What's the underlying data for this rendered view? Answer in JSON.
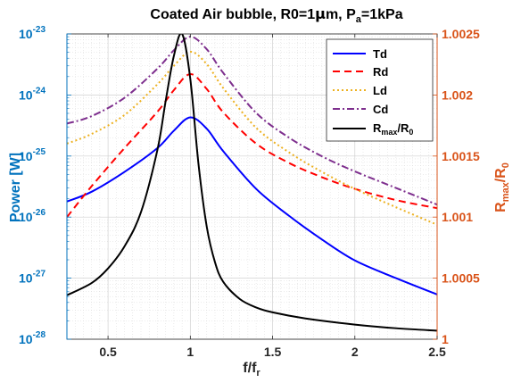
{
  "chart_data": {
    "type": "line",
    "title": {
      "prefix": "Coated Air bubble, R0=1",
      "mu": "μ",
      "mid": "m, P",
      "sub": "a",
      "suffix": "=1kPa"
    },
    "xlabel": {
      "main": "f/f",
      "sub": "r"
    },
    "ylabel_left": "Power [W]",
    "ylabel_right": {
      "main": "R",
      "sub1": "max",
      "mid": "/R",
      "sub2": "0"
    },
    "xlim": [
      0.25,
      2.5
    ],
    "ylim_left": [
      1e-28,
      1e-23
    ],
    "ylim_right": [
      1.0,
      1.0025
    ],
    "left_scale": "log",
    "grid": true,
    "legend_position": "top-right",
    "x_ticks": [
      "0.5",
      "1",
      "1.5",
      "2",
      "2.5"
    ],
    "x_tick_values": [
      0.5,
      1,
      1.5,
      2,
      2.5
    ],
    "left_ticks": [
      {
        "base": "10",
        "exp": "-28"
      },
      {
        "base": "10",
        "exp": "-27"
      },
      {
        "base": "10",
        "exp": "-26"
      },
      {
        "base": "10",
        "exp": "-25"
      },
      {
        "base": "10",
        "exp": "-24"
      },
      {
        "base": "10",
        "exp": "-23"
      }
    ],
    "right_ticks": [
      "1",
      "1.0005",
      "1.001",
      "1.0015",
      "1.002",
      "1.0025"
    ],
    "right_tick_values": [
      1.0,
      1.0005,
      1.001,
      1.0015,
      1.002,
      1.0025
    ],
    "left_axis_color": "#0072bd",
    "right_axis_color": "#d95319",
    "series": [
      {
        "name": "Td",
        "color": "#0000ff",
        "dash": "solid",
        "axis": "left",
        "x": [
          0.25,
          0.4,
          0.6,
          0.8,
          0.9,
          1.0,
          1.1,
          1.2,
          1.4,
          1.6,
          1.8,
          2.0,
          2.25,
          2.5
        ],
        "y": [
          1.8e-26,
          2.6e-26,
          5.5e-26,
          1.35e-25,
          2.6e-25,
          4.3e-25,
          2.8e-25,
          1.2e-25,
          2.9e-26,
          1.05e-26,
          4.3e-27,
          1.95e-27,
          1e-27,
          5.4e-28
        ]
      },
      {
        "name": "Rd",
        "color": "#ff0000",
        "dash": "dashed",
        "axis": "left",
        "x": [
          0.25,
          0.4,
          0.6,
          0.8,
          0.9,
          1.0,
          1.1,
          1.2,
          1.4,
          1.6,
          1.8,
          2.0,
          2.25,
          2.5
        ],
        "y": [
          1e-26,
          3.2e-26,
          1.35e-25,
          5.3e-25,
          1.2e-24,
          2.2e-24,
          1.25e-24,
          5.2e-25,
          1.6e-25,
          7.7e-26,
          4.5e-26,
          2.9e-26,
          1.9e-26,
          1.4e-26
        ]
      },
      {
        "name": "Ld",
        "color": "#edb120",
        "dash": "dotted",
        "axis": "left",
        "x": [
          0.25,
          0.4,
          0.6,
          0.8,
          0.9,
          1.0,
          1.1,
          1.2,
          1.4,
          1.6,
          1.8,
          2.0,
          2.25,
          2.5
        ],
        "y": [
          1.6e-25,
          2.3e-25,
          4.7e-25,
          1.5e-24,
          3e-24,
          5.1e-24,
          3.2e-24,
          1.3e-24,
          2.9e-25,
          1.15e-25,
          5.5e-26,
          2.9e-26,
          1.45e-26,
          7.5e-27
        ]
      },
      {
        "name": "Cd",
        "color": "#7e2f8e",
        "dash": "dashdot",
        "axis": "left",
        "x": [
          0.25,
          0.4,
          0.6,
          0.8,
          0.9,
          1.0,
          1.1,
          1.2,
          1.4,
          1.6,
          1.8,
          2.0,
          2.25,
          2.5
        ],
        "y": [
          3.4e-25,
          4.5e-25,
          9e-25,
          2.7e-24,
          5.4e-24,
          9e-24,
          5.6e-24,
          2.3e-24,
          5.1e-25,
          2e-25,
          9.9e-26,
          5.6e-26,
          3e-26,
          1.6e-26
        ]
      },
      {
        "name_main": "R",
        "name_sub1": "max",
        "name_mid": "/R",
        "name_sub2": "0",
        "color": "#000000",
        "dash": "solid",
        "axis": "right",
        "x": [
          0.25,
          0.4,
          0.5,
          0.6,
          0.7,
          0.8,
          0.85,
          0.9,
          0.95,
          1.0,
          1.05,
          1.1,
          1.15,
          1.2,
          1.3,
          1.4,
          1.5,
          1.7,
          2.0,
          2.25,
          2.5
        ],
        "y": [
          1.00036,
          1.00046,
          1.00058,
          1.00076,
          1.00104,
          1.00155,
          1.00195,
          1.00232,
          1.0025,
          1.00213,
          1.00143,
          1.00092,
          1.00063,
          1.00047,
          1.00033,
          1.00026,
          1.00022,
          1.00017,
          1.00012,
          1.00009,
          1.00007
        ]
      }
    ]
  }
}
